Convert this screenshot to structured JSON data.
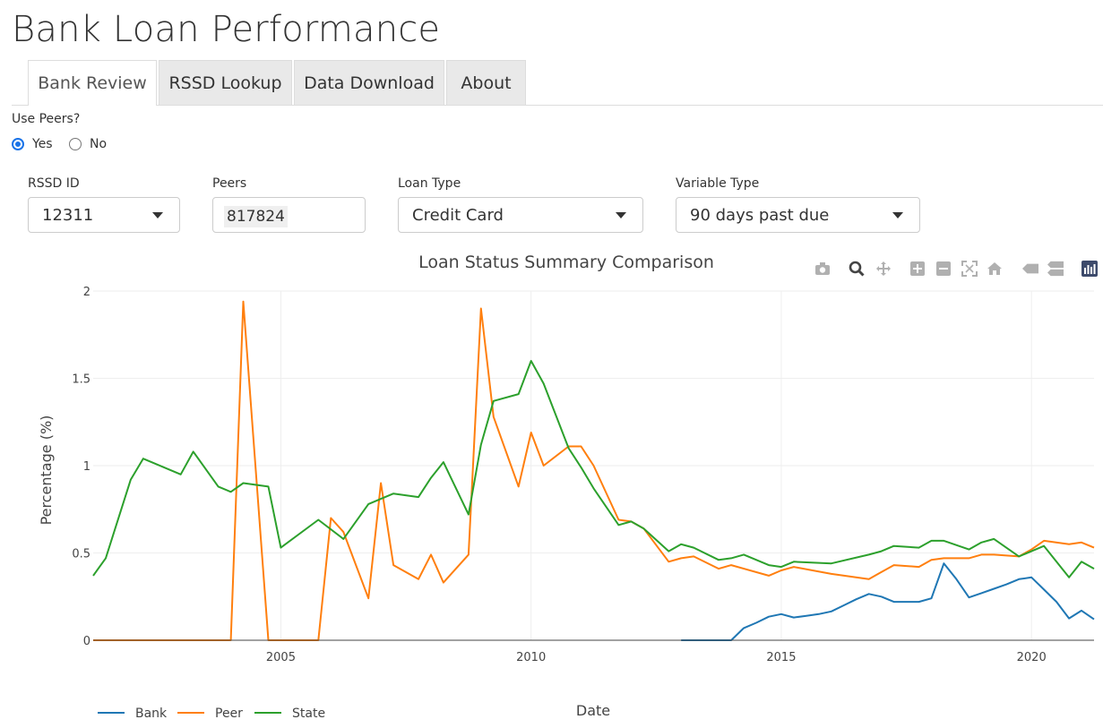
{
  "app": {
    "title": "Bank Loan Performance"
  },
  "tabs": [
    {
      "label": "Bank Review",
      "active": true
    },
    {
      "label": "RSSD Lookup",
      "active": false
    },
    {
      "label": "Data Download",
      "active": false
    },
    {
      "label": "About",
      "active": false
    }
  ],
  "use_peers": {
    "label": "Use Peers?",
    "options": [
      "Yes",
      "No"
    ],
    "selected": "Yes"
  },
  "filters": {
    "rssd": {
      "label": "RSSD ID",
      "value": "12311"
    },
    "peers": {
      "label": "Peers",
      "value": "817824"
    },
    "loan_type": {
      "label": "Loan Type",
      "value": "Credit Card"
    },
    "variable_type": {
      "label": "Variable Type",
      "value": "90 days past due"
    }
  },
  "modebar": [
    "camera-icon",
    "zoom-icon",
    "pan-icon",
    "zoom-in-icon",
    "zoom-out-icon",
    "autoscale-icon",
    "reset-axes-icon",
    "spike-lines-icon",
    "compare-hover-icon",
    "plotly-logo-icon"
  ],
  "chart_data": {
    "type": "line",
    "title": "Loan Status Summary Comparison",
    "xlabel": "Date",
    "ylabel": "Percentage (%)",
    "xlim": [
      2001.25,
      2021.25
    ],
    "ylim": [
      0,
      2.0
    ],
    "xticks": [
      2005,
      2010,
      2015,
      2020
    ],
    "yticks": [
      0,
      0.5,
      1,
      1.5,
      2
    ],
    "ytick_labels": [
      "0",
      "0.5",
      "1",
      "1.5",
      "2"
    ],
    "grid": true,
    "legend_position": "bottom-left",
    "series": [
      {
        "name": "Bank",
        "color": "#1f77b4",
        "x": [
          2013.0,
          2013.25,
          2013.5,
          2013.75,
          2014.0,
          2014.25,
          2014.5,
          2014.75,
          2015.0,
          2015.25,
          2015.5,
          2015.75,
          2016.0,
          2016.25,
          2016.5,
          2016.75,
          2017.0,
          2017.25,
          2017.5,
          2017.75,
          2018.0,
          2018.25,
          2018.5,
          2018.75,
          2019.0,
          2019.25,
          2019.5,
          2019.75,
          2020.0,
          2020.25,
          2020.5,
          2020.75,
          2021.0,
          2021.25
        ],
        "y": [
          0.0,
          0.0,
          0.0,
          0.0,
          0.0,
          0.07,
          0.1,
          0.135,
          0.15,
          0.13,
          0.14,
          0.15,
          0.165,
          0.2,
          0.235,
          0.265,
          0.25,
          0.22,
          0.22,
          0.22,
          0.24,
          0.44,
          0.35,
          0.245,
          0.27,
          0.295,
          0.32,
          0.35,
          0.36,
          0.29,
          0.22,
          0.125,
          0.17,
          0.12
        ]
      },
      {
        "name": "Peer",
        "color": "#ff7f0e",
        "x": [
          2001.25,
          2004.0,
          2004.25,
          2004.75,
          2005.75,
          2006.0,
          2006.25,
          2006.75,
          2007.0,
          2007.25,
          2007.75,
          2008.0,
          2008.25,
          2008.75,
          2009.0,
          2009.25,
          2009.75,
          2010.0,
          2010.25,
          2010.75,
          2011.0,
          2011.25,
          2011.75,
          2012.0,
          2012.25,
          2012.75,
          2013.0,
          2013.25,
          2013.75,
          2014.0,
          2014.75,
          2015.0,
          2015.25,
          2016.0,
          2016.75,
          2017.0,
          2017.25,
          2017.75,
          2018.0,
          2018.25,
          2018.75,
          2019.0,
          2019.25,
          2019.75,
          2020.0,
          2020.25,
          2020.75,
          2021.0,
          2021.25
        ],
        "y": [
          0.0,
          0.0,
          1.94,
          0.0,
          0.0,
          0.7,
          0.62,
          0.24,
          0.9,
          0.43,
          0.35,
          0.49,
          0.33,
          0.49,
          1.9,
          1.28,
          0.88,
          1.19,
          1.0,
          1.11,
          1.11,
          1.0,
          0.69,
          0.68,
          0.64,
          0.45,
          0.47,
          0.48,
          0.41,
          0.43,
          0.37,
          0.4,
          0.42,
          0.38,
          0.35,
          0.39,
          0.43,
          0.42,
          0.46,
          0.47,
          0.47,
          0.49,
          0.49,
          0.48,
          0.52,
          0.57,
          0.55,
          0.56,
          0.53
        ]
      },
      {
        "name": "State",
        "color": "#2ca02c",
        "x": [
          2001.25,
          2001.5,
          2002.0,
          2002.25,
          2003.0,
          2003.25,
          2003.75,
          2004.0,
          2004.25,
          2004.75,
          2005.0,
          2005.75,
          2006.25,
          2006.75,
          2007.25,
          2007.75,
          2008.0,
          2008.25,
          2008.75,
          2009.0,
          2009.25,
          2009.75,
          2010.0,
          2010.25,
          2010.75,
          2011.0,
          2011.25,
          2011.75,
          2012.0,
          2012.25,
          2012.75,
          2013.0,
          2013.25,
          2013.75,
          2014.0,
          2014.25,
          2014.75,
          2015.0,
          2015.25,
          2016.0,
          2016.75,
          2017.0,
          2017.25,
          2017.75,
          2018.0,
          2018.25,
          2018.75,
          2019.0,
          2019.25,
          2019.75,
          2020.0,
          2020.25,
          2020.75,
          2021.0,
          2021.25
        ],
        "y": [
          0.37,
          0.47,
          0.92,
          1.04,
          0.95,
          1.08,
          0.88,
          0.85,
          0.9,
          0.88,
          0.53,
          0.69,
          0.58,
          0.78,
          0.84,
          0.82,
          0.93,
          1.02,
          0.72,
          1.12,
          1.37,
          1.41,
          1.6,
          1.47,
          1.1,
          0.99,
          0.87,
          0.66,
          0.68,
          0.64,
          0.51,
          0.55,
          0.53,
          0.46,
          0.47,
          0.49,
          0.43,
          0.42,
          0.45,
          0.44,
          0.49,
          0.51,
          0.54,
          0.53,
          0.57,
          0.57,
          0.52,
          0.56,
          0.58,
          0.48,
          0.51,
          0.54,
          0.36,
          0.45,
          0.41
        ]
      }
    ]
  }
}
